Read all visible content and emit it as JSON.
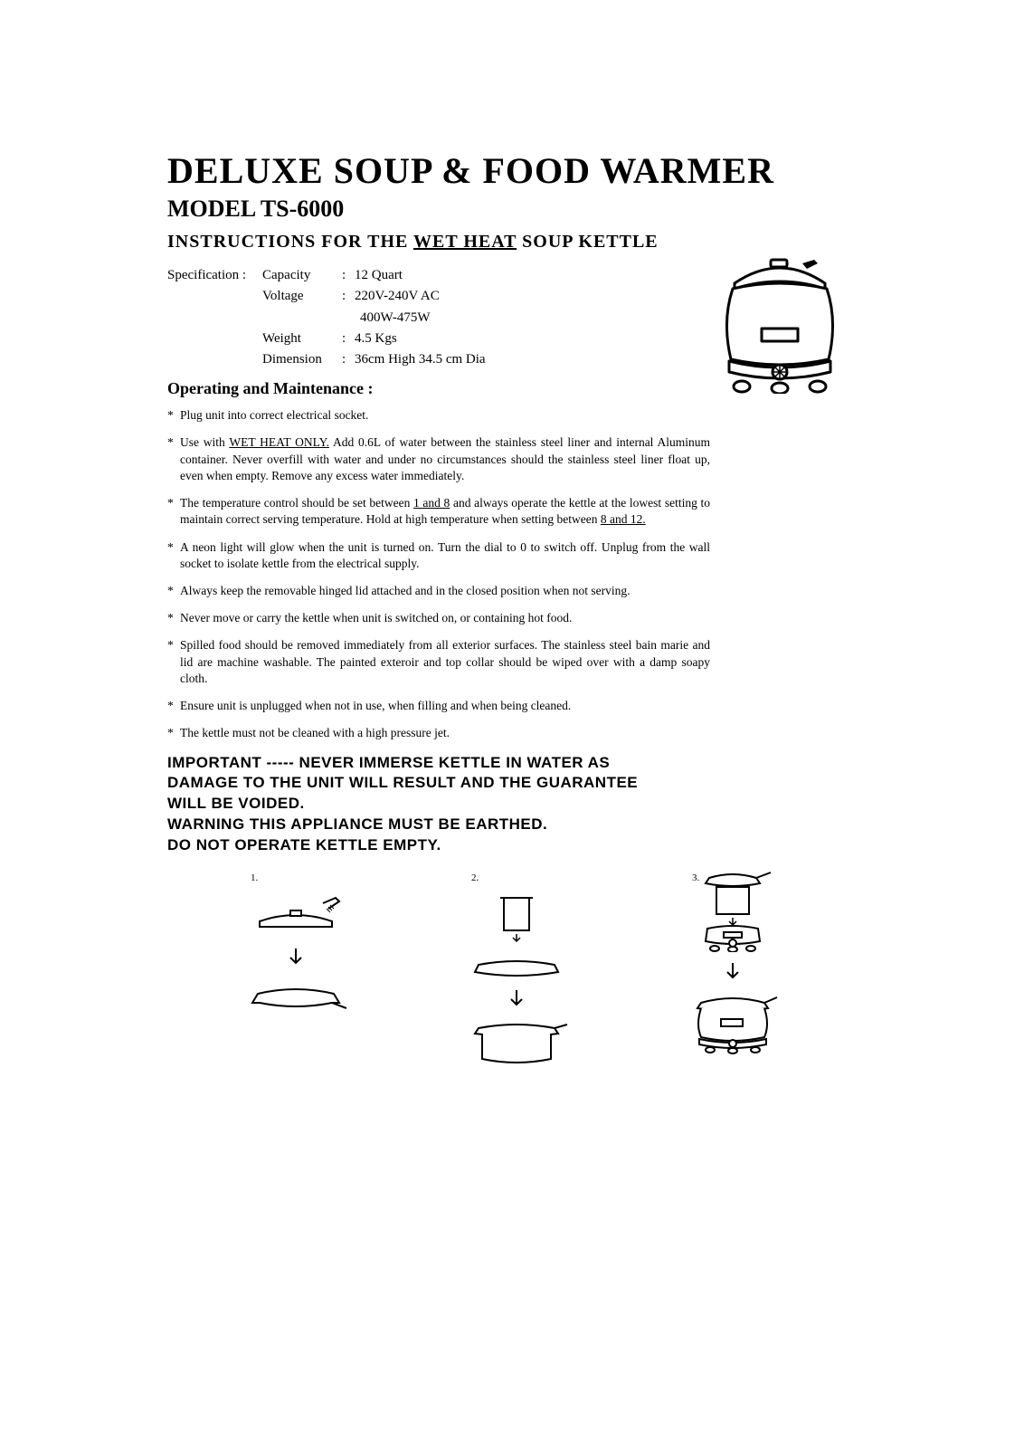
{
  "title": "DELUXE SOUP & FOOD WARMER",
  "model": "MODEL TS-6000",
  "subhead_pre": "INSTRUCTIONS FOR THE ",
  "subhead_u": "WET HEAT",
  "subhead_post": " SOUP KETTLE",
  "spec_lead": "Specification :",
  "specs": [
    {
      "label": "Capacity",
      "value": "12  Quart"
    },
    {
      "label": "Voltage",
      "value": "220V-240V  AC"
    },
    {
      "label": "",
      "value": "400W-475W"
    },
    {
      "label": "Weight",
      "value": "4.5  Kgs"
    },
    {
      "label": "Dimension",
      "value": "36cm  High  34.5  cm  Dia"
    }
  ],
  "op_head": "Operating and Maintenance :",
  "bullets": [
    {
      "segments": [
        {
          "t": "Plug unit into correct electrical socket."
        }
      ]
    },
    {
      "segments": [
        {
          "t": "Use with "
        },
        {
          "t": "WET HEAT ONLY.",
          "u": true
        },
        {
          "t": " Add 0.6L of water between the stainless steel liner and internal Aluminum container. Never overfill with water and under no circumstances should the stainless steel liner float up, even when empty. Remove any excess water immediately."
        }
      ]
    },
    {
      "segments": [
        {
          "t": "The temperature control should be set between "
        },
        {
          "t": "1 and 8",
          "u": true
        },
        {
          "t": " and always operate the kettle at the lowest setting to maintain correct serving temperature. Hold at high temperature when setting between "
        },
        {
          "t": "8 and 12.",
          "u": true
        }
      ]
    },
    {
      "segments": [
        {
          "t": "A neon light will glow when the unit is turned on. Turn the dial to 0 to switch off. Unplug from the wall socket to isolate kettle from the  electrical supply."
        }
      ]
    },
    {
      "segments": [
        {
          "t": "Always keep the removable hinged lid attached and in the closed position when not serving."
        }
      ]
    },
    {
      "segments": [
        {
          "t": "Never move or carry the kettle when unit is switched on, or containing hot food."
        }
      ]
    },
    {
      "segments": [
        {
          "t": "Spilled food should be removed immediately from all exterior surfaces. The stainless steel bain marie and lid are machine washable. The painted exteroir and top collar should be wiped over with a damp soapy cloth."
        }
      ]
    },
    {
      "segments": [
        {
          "t": "Ensure unit is unplugged when not in use, when filling and when being cleaned."
        }
      ]
    },
    {
      "segments": [
        {
          "t": "The kettle must not be cleaned with a high pressure jet."
        }
      ]
    }
  ],
  "warning_lines": [
    "IMPORTANT ----- NEVER IMMERSE KETTLE IN WATER AS",
    "DAMAGE TO THE UNIT WILL RESULT AND THE GUARANTEE",
    "WILL BE VOIDED.",
    "WARNING THIS APPLIANCE MUST BE EARTHED.",
    "DO NOT OPERATE KETTLE EMPTY."
  ],
  "steps": [
    "1.",
    "2.",
    "3."
  ],
  "illustration": {
    "stroke": "#000000",
    "stroke_width": 3,
    "fill": "#ffffff"
  }
}
